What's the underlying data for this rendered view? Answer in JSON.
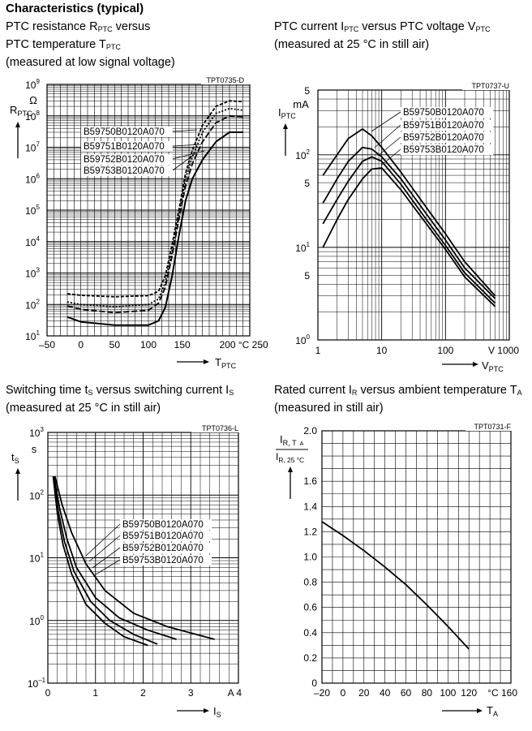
{
  "page_title": "Characteristics (typical)",
  "captions": [
    {
      "lines": [
        "PTC resistance R_PTC versus",
        "PTC temperature T_PTC",
        "(measured at low signal voltage)"
      ]
    },
    {
      "lines": [
        "PTC current I_PTC versus PTC voltage V_PTC",
        "(measured at 25 °C in still air)"
      ]
    },
    {
      "lines": [
        "Switching time t_S versus switching current I_S",
        "(measured at 25 °C in still air)"
      ]
    },
    {
      "lines": [
        "Rated current I_R versus ambient temperature T_A",
        "(measured in still air)"
      ]
    }
  ],
  "chart_data": [
    {
      "id": "TPT0735-D",
      "type": "line",
      "title": "PTC resistance R_PTC versus PTC temperature T_PTC",
      "xlabel": "T_PTC",
      "ylabel": "R_PTC",
      "yunit": "Ω",
      "xunit": "°C",
      "xlim": [
        -50,
        250
      ],
      "ylim": [
        10,
        1000000000
      ],
      "yscale": "log",
      "grid": true,
      "xticks": [
        "-50",
        "0",
        "50",
        "100",
        "150",
        "200",
        "250"
      ],
      "yticks": [
        "10^1",
        "10^2",
        "10^3",
        "10^4",
        "10^5",
        "10^6",
        "10^7",
        "10^8",
        "10^9"
      ],
      "series": [
        {
          "name": "B59750B0120A070",
          "x": [
            -20,
            0,
            50,
            100,
            115,
            125,
            135,
            145,
            155,
            165,
            180,
            200,
            220,
            240
          ],
          "values": [
            220,
            195,
            175,
            190,
            260,
            800,
            8000,
            100000,
            1500000,
            8000000,
            50000000,
            200000000,
            300000000,
            280000000
          ]
        },
        {
          "name": "B59751B0120A070",
          "x": [
            -20,
            0,
            50,
            100,
            115,
            125,
            135,
            145,
            155,
            165,
            180,
            200,
            220,
            240
          ],
          "values": [
            120,
            100,
            85,
            100,
            150,
            500,
            5000,
            70000,
            1000000,
            5000000,
            30000000,
            120000000,
            170000000,
            150000000
          ]
        },
        {
          "name": "B59752B0120A070",
          "x": [
            -20,
            0,
            50,
            100,
            115,
            125,
            135,
            145,
            155,
            165,
            180,
            200,
            220,
            240
          ],
          "values": [
            90,
            70,
            55,
            65,
            110,
            350,
            3500,
            50000,
            600000,
            3000000,
            15000000,
            60000000,
            100000000,
            90000000
          ]
        },
        {
          "name": "B59753B0120A070",
          "x": [
            -20,
            0,
            50,
            100,
            115,
            125,
            135,
            145,
            155,
            165,
            180,
            200,
            220,
            240
          ],
          "values": [
            40,
            28,
            22,
            22,
            30,
            80,
            800,
            15000,
            200000,
            1000000,
            4000000,
            15000000,
            30000000,
            30000000
          ]
        }
      ]
    },
    {
      "id": "TPT0737-U",
      "type": "line",
      "title": "PTC current I_PTC versus PTC voltage V_PTC",
      "xlabel": "V_PTC",
      "ylabel": "I_PTC",
      "yunit": "mA",
      "xunit": "V",
      "xscale": "log",
      "yscale": "log",
      "xlim": [
        1,
        1000
      ],
      "ylim": [
        1,
        500
      ],
      "grid": true,
      "xticks": [
        "1",
        "10",
        "100",
        "1000"
      ],
      "yticks": [
        "10^0",
        "5",
        "10^1",
        "5",
        "10^2",
        "5"
      ],
      "series": [
        {
          "name": "B59750B0120A070",
          "x": [
            1.2,
            2,
            3,
            5,
            7,
            10,
            20,
            50,
            100,
            200,
            600
          ],
          "values": [
            60,
            100,
            150,
            190,
            160,
            120,
            65,
            27,
            14,
            7,
            3.0
          ]
        },
        {
          "name": "B59751B0120A070",
          "x": [
            1.2,
            2,
            3,
            5,
            7,
            10,
            20,
            50,
            100,
            200,
            600
          ],
          "values": [
            30,
            55,
            85,
            120,
            115,
            95,
            55,
            23,
            12,
            6,
            2.8
          ]
        },
        {
          "name": "B59752B0120A070",
          "x": [
            1.2,
            2,
            3,
            5,
            7,
            10,
            20,
            50,
            100,
            200,
            600
          ],
          "values": [
            18,
            33,
            52,
            85,
            95,
            85,
            48,
            20,
            10.5,
            5.3,
            2.5
          ]
        },
        {
          "name": "B59753B0120A070",
          "x": [
            1.2,
            2,
            3,
            5,
            7,
            10,
            20,
            50,
            100,
            200,
            600
          ],
          "values": [
            10,
            20,
            33,
            55,
            70,
            72,
            42,
            18,
            9.5,
            4.8,
            2.3
          ]
        }
      ]
    },
    {
      "id": "TPT0736-L",
      "type": "line",
      "title": "Switching time t_S versus switching current I_S",
      "xlabel": "I_S",
      "ylabel": "t_S",
      "yunit": "s",
      "xunit": "A",
      "yscale": "log",
      "xlim": [
        0,
        4
      ],
      "ylim": [
        0.1,
        1000
      ],
      "grid": true,
      "xticks": [
        "0",
        "1",
        "2",
        "3",
        "4"
      ],
      "yticks": [
        "10^-1",
        "10^0",
        "10^1",
        "10^2",
        "10^3"
      ],
      "series": [
        {
          "name": "B59750B0120A070",
          "x": [
            0.15,
            0.3,
            0.5,
            0.8,
            1.2,
            1.8,
            2.5,
            3.5
          ],
          "values": [
            200,
            70,
            25,
            8,
            3,
            1.3,
            0.8,
            0.5
          ]
        },
        {
          "name": "B59751B0120A070",
          "x": [
            0.13,
            0.25,
            0.4,
            0.6,
            1.0,
            1.5,
            2.1,
            2.7
          ],
          "values": [
            200,
            60,
            20,
            7,
            2.3,
            1.1,
            0.7,
            0.5
          ]
        },
        {
          "name": "B59752B0120A070",
          "x": [
            0.12,
            0.22,
            0.35,
            0.55,
            0.9,
            1.3,
            1.8,
            2.3
          ],
          "values": [
            200,
            55,
            18,
            6,
            2,
            1,
            0.6,
            0.42
          ]
        },
        {
          "name": "B59753B0120A070",
          "x": [
            0.11,
            0.2,
            0.32,
            0.5,
            0.8,
            1.2,
            1.6,
            2.1
          ],
          "values": [
            200,
            50,
            16,
            5.5,
            1.8,
            0.9,
            0.55,
            0.4
          ]
        }
      ]
    },
    {
      "id": "TPT0731-F",
      "type": "line",
      "title": "Rated current I_R versus ambient temperature T_A",
      "xlabel": "T_A",
      "ylabel": "I_R,TA / I_R,25°C",
      "xunit": "°C",
      "xlim": [
        -20,
        160
      ],
      "ylim": [
        0,
        2.0
      ],
      "grid": true,
      "xticks": [
        "-20",
        "0",
        "20",
        "40",
        "60",
        "80",
        "100",
        "120",
        "°C 160"
      ],
      "yticks": [
        "0",
        "0.2",
        "0.4",
        "0.6",
        "0.8",
        "1.0",
        "1.2",
        "1.4",
        "1.6",
        "2.0"
      ],
      "series": [
        {
          "x": [
            -20,
            0,
            20,
            40,
            60,
            80,
            100,
            120
          ],
          "values": [
            1.28,
            1.17,
            1.05,
            0.92,
            0.78,
            0.62,
            0.45,
            0.27
          ]
        }
      ]
    }
  ]
}
